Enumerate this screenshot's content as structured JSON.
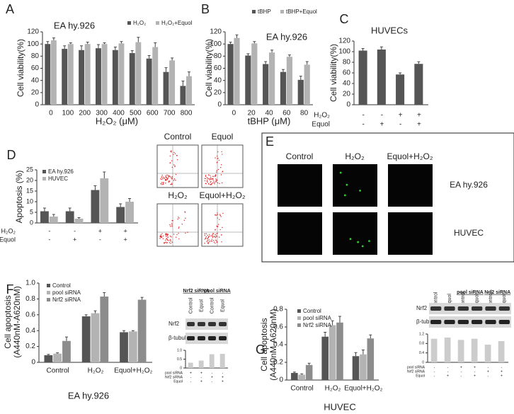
{
  "chart_data": [
    {
      "type": "bar",
      "label": "A",
      "title": "EA hy.926",
      "xlabel": "H₂O₂ (μM)",
      "ylabel": "Cell viability(%)",
      "categories": [
        "0",
        "100",
        "200",
        "300",
        "400",
        "500",
        "600",
        "700",
        "800"
      ],
      "series": [
        {
          "name": "H₂O₂",
          "color": "#555555",
          "values": [
            100,
            92,
            90,
            93,
            90,
            85,
            76,
            54,
            31
          ],
          "errors": [
            4,
            5,
            7,
            6,
            5,
            4,
            5,
            7,
            8
          ]
        },
        {
          "name": "H₂O₂+Equol",
          "color": "#b3b3b3",
          "values": [
            106,
            100,
            100,
            100,
            101,
            103,
            95,
            73,
            47
          ],
          "errors": [
            4,
            2,
            3,
            2,
            3,
            8,
            7,
            4,
            7
          ]
        }
      ],
      "ylim": [
        0,
        120
      ],
      "yticks": [
        0,
        20,
        40,
        60,
        80,
        100,
        120
      ]
    },
    {
      "type": "bar",
      "label": "B",
      "title": "EA hy.926",
      "xlabel": "tBHP (μM)",
      "ylabel": "Cell viability(%)",
      "categories": [
        "0",
        "20",
        "40",
        "60",
        "80"
      ],
      "series": [
        {
          "name": "tBHP",
          "color": "#555555",
          "values": [
            100,
            81,
            67,
            54,
            41
          ],
          "errors": [
            3,
            3,
            4,
            4,
            6
          ]
        },
        {
          "name": "tBHP+Equol",
          "color": "#b3b3b3",
          "values": [
            110,
            101,
            86,
            79,
            66
          ],
          "errors": [
            5,
            3,
            4,
            3,
            5
          ]
        }
      ],
      "ylim": [
        0,
        120
      ],
      "yticks": [
        0,
        20,
        40,
        60,
        80,
        100,
        120
      ]
    },
    {
      "type": "bar",
      "label": "C",
      "title": "HUVECs",
      "ylabel": "Cell viability(%)",
      "series": [
        {
          "color": "#555555",
          "values": [
            102,
            104,
            57,
            77
          ],
          "errors": [
            4,
            5,
            3,
            4
          ]
        }
      ],
      "conditions": [
        {
          "name": "H₂O₂",
          "values": [
            "-",
            "-",
            "+",
            "+"
          ]
        },
        {
          "name": "Equol",
          "values": [
            "-",
            "+",
            "-",
            "+"
          ]
        }
      ],
      "ylim": [
        0,
        120
      ],
      "yticks": [
        0,
        20,
        40,
        60,
        80,
        100,
        120
      ]
    },
    {
      "type": "bar",
      "label": "D",
      "ylabel": "Apoptosis (%)",
      "series": [
        {
          "name": "EA hy.926",
          "color": "#555555",
          "values": [
            5.5,
            5.5,
            15.5,
            7.5
          ],
          "errors": [
            1.5,
            1.5,
            2,
            1.5
          ]
        },
        {
          "name": "HUVEC",
          "color": "#b3b3b3",
          "values": [
            3,
            2,
            21,
            10
          ],
          "errors": [
            1,
            0.5,
            3,
            1.5
          ]
        }
      ],
      "conditions": [
        {
          "name": "H₂O₂",
          "values": [
            "-",
            "-",
            "+",
            "+"
          ]
        },
        {
          "name": "Equol",
          "values": [
            "-",
            "+",
            "-",
            "+"
          ]
        }
      ],
      "ylim": [
        0,
        25
      ],
      "yticks": [
        0,
        5,
        10,
        15,
        20,
        25
      ]
    },
    {
      "type": "bar",
      "label": "F",
      "xlabel": "EA hy.926",
      "ylabel": [
        "Cell apoptosis",
        "(A440nM-A620nM)"
      ],
      "categories": [
        "Control",
        "H₂O₂",
        "Equol+H₂O₂"
      ],
      "series": [
        {
          "name": "Control",
          "color": "#555555",
          "values": [
            0.09,
            0.58,
            0.38
          ],
          "errors": [
            0.01,
            0.02,
            0.02
          ]
        },
        {
          "name": "pool siRNA",
          "color": "#b3b3b3",
          "values": [
            0.11,
            0.62,
            0.39
          ],
          "errors": [
            0.01,
            0.03,
            0.01
          ]
        },
        {
          "name": "Nrf2 siRNA",
          "color": "#8c8c8c",
          "values": [
            0.27,
            0.83,
            0.79
          ],
          "errors": [
            0.05,
            0.05,
            0.03
          ]
        }
      ],
      "ylim": [
        0,
        1
      ],
      "yticks": [
        0,
        0.2,
        0.4,
        0.6,
        0.8,
        {
          "value": 1,
          "label": "1.0"
        }
      ]
    },
    {
      "type": "bar",
      "label": "G",
      "xlabel": "HUVEC",
      "ylabel": [
        "Cell apoptosis",
        "(A440nM-A620nM)"
      ],
      "categories": [
        "Control",
        "H₂O₂",
        "Equol+H₂O₂"
      ],
      "series": [
        {
          "name": "Control",
          "color": "#555555",
          "values": [
            0.08,
            0.49,
            0.27
          ],
          "errors": [
            0.01,
            0.05,
            0.04
          ]
        },
        {
          "name": "pool siRNA",
          "color": "#b3b3b3",
          "values": [
            0.06,
            0.62,
            0.29
          ],
          "errors": [
            0.01,
            0.05,
            0.05
          ]
        },
        {
          "name": "Nrf2 siRNA",
          "color": "#8c8c8c",
          "values": [
            0.17,
            0.65,
            0.47
          ],
          "errors": [
            0.02,
            0.07,
            0.04
          ]
        }
      ],
      "ylim": [
        0,
        0.8
      ],
      "yticks": [
        0,
        0.2,
        0.4,
        0.6,
        0.8
      ]
    },
    {
      "type": "bar",
      "series": [
        {
          "color": "#cccccc",
          "values": [
            0.3,
            0.42,
            0.78,
            0.8
          ]
        }
      ],
      "conditions": [
        {
          "name": "pool siRNA",
          "values": [
            "+",
            "+",
            "-",
            "-"
          ]
        },
        {
          "name": "Nrf2 siRNA",
          "values": [
            "-",
            "-",
            "+",
            "+"
          ]
        },
        {
          "name": "Equol",
          "values": [
            "-",
            "+",
            "-",
            "+"
          ]
        }
      ],
      "ylim": [
        0,
        1
      ],
      "yticks": [
        0,
        0.5,
        {
          "value": 1,
          "label": "1.0"
        }
      ]
    },
    {
      "type": "bar",
      "series": [
        {
          "color": "#cccccc",
          "values": [
            1,
            1.05,
            0.95,
            1,
            0.75,
            0.9
          ]
        }
      ],
      "conditions": [
        {
          "name": "pool siRNA",
          "values": [
            "-",
            "-",
            "+",
            "+",
            "-",
            "-"
          ]
        },
        {
          "name": "Nrf2 siRNA",
          "values": [
            "-",
            "-",
            "-",
            "-",
            "+",
            "+"
          ]
        },
        {
          "name": "Equol",
          "values": [
            "-",
            "+",
            "-",
            "+",
            "-",
            "+"
          ]
        }
      ],
      "ylim": [
        0,
        1.2
      ],
      "yticks": [
        0,
        0.4,
        0.8,
        1.2
      ]
    }
  ],
  "flow_panels": [
    "Control",
    "Equol",
    "H₂O₂",
    "Equol+H₂O₂"
  ],
  "microscopy": {
    "label": "E",
    "columns": [
      "Control",
      "H₂O₂",
      "Equol+H₂O₂"
    ],
    "rows": [
      "EA hy.926",
      "HUVEC"
    ]
  },
  "blots": [
    {
      "groups": [
        "Nrf2 siRNA",
        "pool siRNA"
      ],
      "lanes": [
        "Control",
        "Equol",
        "Control",
        "Equol"
      ],
      "rows": [
        "Nrf2",
        "β-tubulin"
      ]
    },
    {
      "groups": [
        "pool siRNA",
        "Nrf2 siRNA"
      ],
      "lanes": [
        "Control",
        "Equol",
        "Control",
        "Equol",
        "Control",
        "Equol"
      ],
      "rows": [
        "Nrf2",
        "β-tubulin"
      ]
    }
  ]
}
